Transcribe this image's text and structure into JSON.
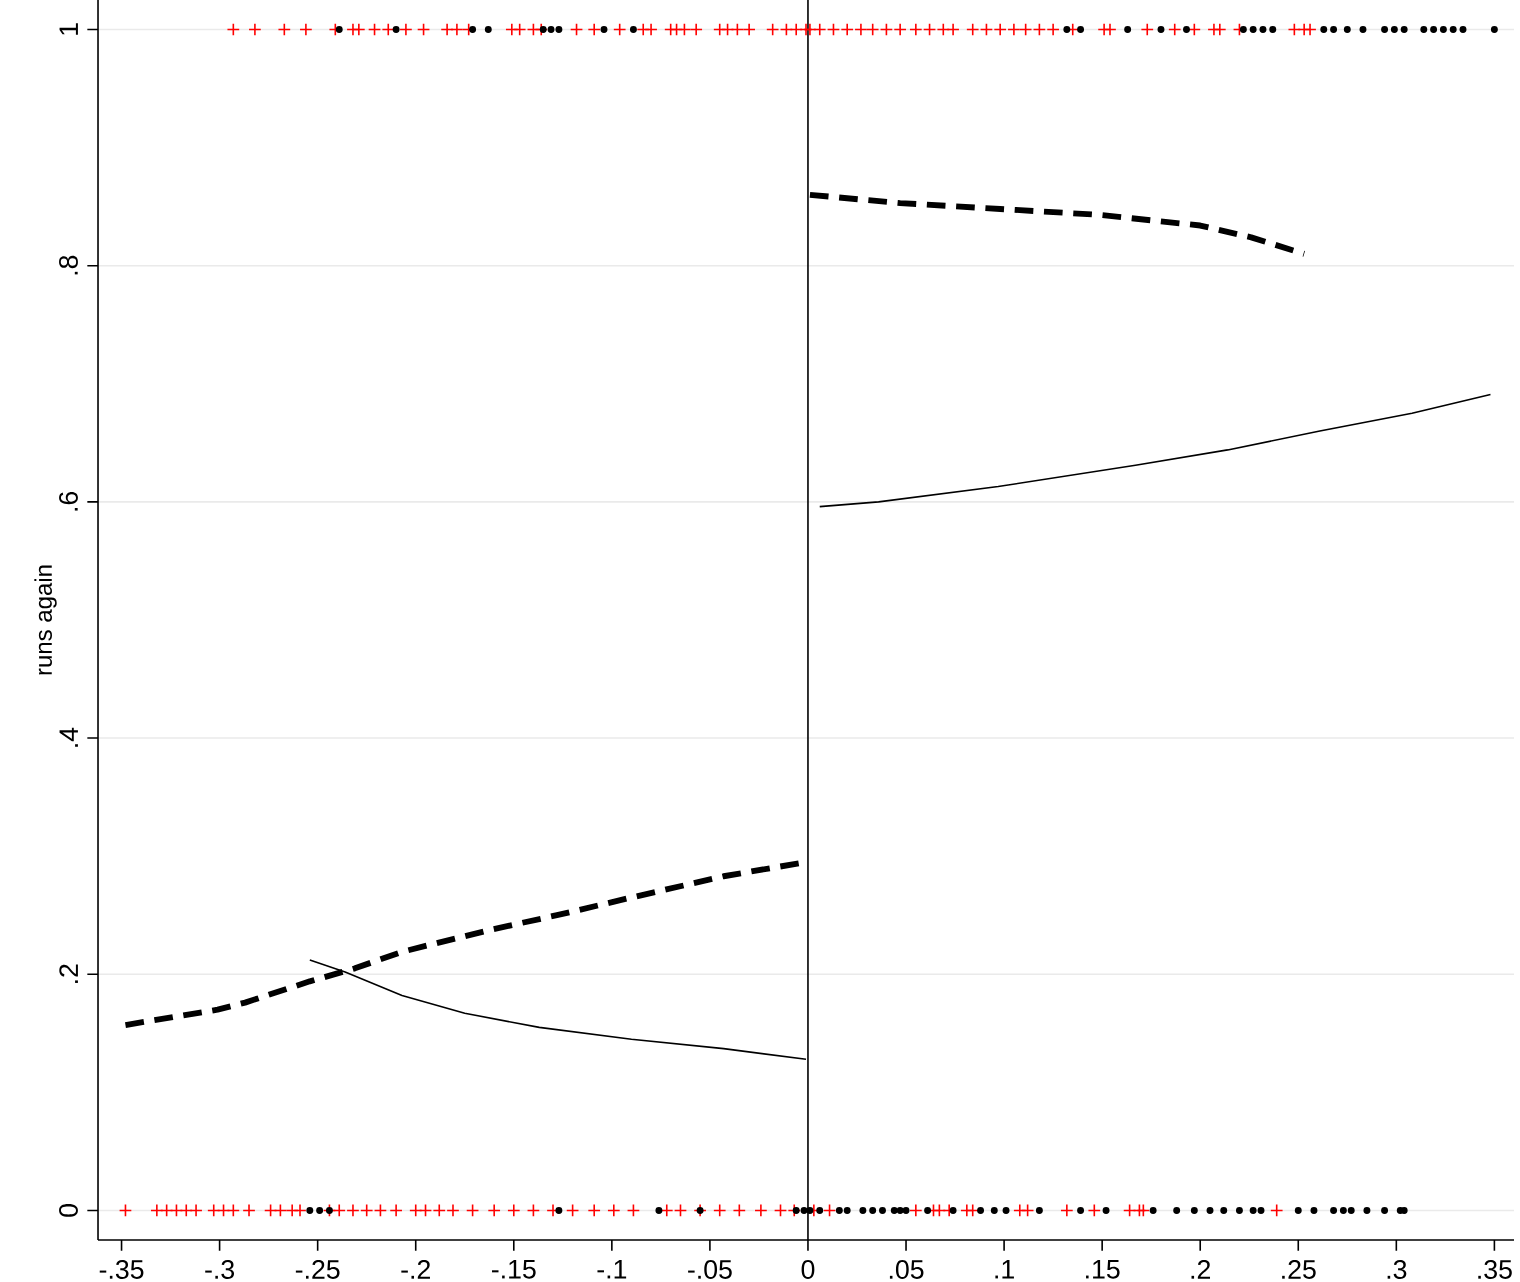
{
  "chart_data": {
    "type": "scatter",
    "ylabel": "runs again",
    "xlim": [
      -0.362,
      0.36
    ],
    "ylim": [
      -0.025,
      1.025
    ],
    "xticks": [
      {
        "value": -0.35,
        "label": "-.35"
      },
      {
        "value": -0.3,
        "label": "-.3"
      },
      {
        "value": -0.25,
        "label": "-.25"
      },
      {
        "value": -0.2,
        "label": "-.2"
      },
      {
        "value": -0.15,
        "label": "-.15"
      },
      {
        "value": -0.1,
        "label": "-.1"
      },
      {
        "value": -0.05,
        "label": "-.05"
      },
      0,
      {
        "value": 0.05,
        "label": ".05"
      },
      {
        "value": 0.1,
        "label": ".1"
      },
      {
        "value": 0.15,
        "label": ".15"
      },
      {
        "value": 0.2,
        "label": ".2"
      },
      {
        "value": 0.25,
        "label": ".25"
      },
      {
        "value": 0.3,
        "label": ".3"
      },
      {
        "value": 0.35,
        "label": ".35"
      }
    ],
    "yticks": [
      0,
      {
        "value": 0.2,
        "label": ".2"
      },
      {
        "value": 0.4,
        "label": ".4"
      },
      {
        "value": 0.6,
        "label": ".6"
      },
      {
        "value": 0.8,
        "label": ".8"
      },
      1
    ],
    "grid": "y",
    "ref_lines": [
      {
        "axis": "x",
        "value": 0,
        "color": "#000000"
      }
    ],
    "series": [
      {
        "marker": "cross",
        "color": "#ff0000",
        "x": [
          -0.293,
          -0.282,
          -0.267,
          -0.256,
          -0.241,
          -0.232,
          -0.229,
          -0.221,
          -0.214,
          -0.205,
          -0.196,
          -0.184,
          -0.179,
          -0.173,
          -0.151,
          -0.147,
          -0.14,
          -0.136,
          -0.118,
          -0.109,
          -0.096,
          -0.084,
          -0.08,
          -0.07,
          -0.067,
          -0.063,
          -0.057,
          -0.045,
          -0.041,
          -0.036,
          -0.03,
          -0.018,
          -0.011,
          -0.006,
          -0.001,
          0.001,
          0.006,
          0.013,
          0.02,
          0.027,
          0.033,
          0.04,
          0.047,
          0.055,
          0.062,
          0.069,
          0.074,
          0.084,
          0.091,
          0.098,
          0.105,
          0.111,
          0.118,
          0.125,
          0.135,
          0.151,
          0.154,
          0.173,
          0.187,
          0.197,
          0.207,
          0.21,
          0.22,
          0.248,
          0.253,
          0.256
        ],
        "values": [
          1,
          1,
          1,
          1,
          1,
          1,
          1,
          1,
          1,
          1,
          1,
          1,
          1,
          1,
          1,
          1,
          1,
          1,
          1,
          1,
          1,
          1,
          1,
          1,
          1,
          1,
          1,
          1,
          1,
          1,
          1,
          1,
          1,
          1,
          1,
          1,
          1,
          1,
          1,
          1,
          1,
          1,
          1,
          1,
          1,
          1,
          1,
          1,
          1,
          1,
          1,
          1,
          1,
          1,
          1,
          1,
          1,
          1,
          1,
          1,
          1,
          1,
          1,
          1,
          1,
          1
        ]
      },
      {
        "marker": "circle",
        "color": "#000000",
        "x": [
          -0.239,
          -0.21,
          -0.171,
          -0.163,
          -0.135,
          -0.131,
          -0.127,
          -0.104,
          -0.089,
          0.132,
          0.139,
          0.163,
          0.18,
          0.193,
          0.222,
          0.227,
          0.232,
          0.237,
          0.263,
          0.268,
          0.275,
          0.283,
          0.294,
          0.299,
          0.304,
          0.314,
          0.319,
          0.324,
          0.329,
          0.334,
          0.35
        ],
        "values": [
          1,
          1,
          1,
          1,
          1,
          1,
          1,
          1,
          1,
          1,
          1,
          1,
          1,
          1,
          1,
          1,
          1,
          1,
          1,
          1,
          1,
          1,
          1,
          1,
          1,
          1,
          1,
          1,
          1,
          1,
          1
        ]
      },
      {
        "marker": "cross",
        "color": "#ff0000",
        "x": [
          -0.348,
          -0.332,
          -0.327,
          -0.322,
          -0.317,
          -0.312,
          -0.303,
          -0.298,
          -0.293,
          -0.285,
          -0.274,
          -0.269,
          -0.263,
          -0.259,
          -0.244,
          -0.239,
          -0.232,
          -0.225,
          -0.218,
          -0.21,
          -0.2,
          -0.195,
          -0.188,
          -0.181,
          -0.171,
          -0.16,
          -0.15,
          -0.14,
          -0.13,
          -0.12,
          -0.109,
          -0.099,
          -0.089,
          -0.072,
          -0.065,
          -0.055,
          -0.045,
          -0.035,
          -0.024,
          -0.014,
          -0.007,
          0.003,
          0.011,
          0.055,
          0.064,
          0.067,
          0.072,
          0.081,
          0.084,
          0.108,
          0.112,
          0.132,
          0.146,
          0.164,
          0.169,
          0.171,
          0.239
        ],
        "values": [
          0,
          0,
          0,
          0,
          0,
          0,
          0,
          0,
          0,
          0,
          0,
          0,
          0,
          0,
          0,
          0,
          0,
          0,
          0,
          0,
          0,
          0,
          0,
          0,
          0,
          0,
          0,
          0,
          0,
          0,
          0,
          0,
          0,
          0,
          0,
          0,
          0,
          0,
          0,
          0,
          0,
          0,
          0,
          0,
          0,
          0,
          0,
          0,
          0,
          0,
          0,
          0,
          0,
          0,
          0,
          0,
          0
        ]
      },
      {
        "marker": "circle",
        "color": "#000000",
        "x": [
          -0.254,
          -0.249,
          -0.244,
          -0.127,
          -0.076,
          -0.055,
          -0.006,
          -0.002,
          0.001,
          0.006,
          0.016,
          0.02,
          0.028,
          0.033,
          0.038,
          0.044,
          0.047,
          0.05,
          0.061,
          0.074,
          0.088,
          0.095,
          0.101,
          0.118,
          0.139,
          0.152,
          0.176,
          0.188,
          0.197,
          0.205,
          0.212,
          0.22,
          0.227,
          0.231,
          0.25,
          0.258,
          0.268,
          0.273,
          0.277,
          0.285,
          0.294,
          0.302,
          0.304
        ],
        "values": [
          0,
          0,
          0,
          0,
          0,
          0,
          0,
          0,
          0,
          0,
          0,
          0,
          0,
          0,
          0,
          0,
          0,
          0,
          0,
          0,
          0,
          0,
          0,
          0,
          0,
          0,
          0,
          0,
          0,
          0,
          0,
          0,
          0,
          0,
          0,
          0,
          0,
          0,
          0,
          0,
          0,
          0,
          0
        ]
      },
      {
        "type": "line",
        "line_style": "dashed",
        "color": "#000000",
        "x": [
          -0.348,
          -0.301,
          -0.287,
          -0.254,
          -0.231,
          -0.207,
          -0.161,
          -0.128,
          -0.09,
          -0.043,
          -0.001
        ],
        "values": [
          0.157,
          0.17,
          0.176,
          0.194,
          0.205,
          0.219,
          0.238,
          0.25,
          0.265,
          0.283,
          0.295
        ]
      },
      {
        "type": "line",
        "line_style": "solid",
        "color": "#000000",
        "x": [
          -0.254,
          -0.236,
          -0.207,
          -0.175,
          -0.137,
          -0.09,
          -0.043,
          -0.001
        ],
        "values": [
          0.212,
          0.202,
          0.182,
          0.167,
          0.155,
          0.145,
          0.137,
          0.128
        ]
      },
      {
        "type": "line",
        "line_style": "solid",
        "color": "#000000",
        "x": [
          0.006,
          0.036,
          0.097,
          0.167,
          0.214,
          0.261,
          0.308,
          0.348
        ],
        "values": [
          0.596,
          0.6,
          0.613,
          0.631,
          0.644,
          0.66,
          0.675,
          0.691
        ]
      },
      {
        "type": "line",
        "line_style": "dashed",
        "color": "#000000",
        "x": [
          0.001,
          0.047,
          0.098,
          0.149,
          0.2,
          0.226,
          0.253
        ],
        "values": [
          0.86,
          0.853,
          0.848,
          0.843,
          0.834,
          0.824,
          0.81
        ]
      }
    ]
  }
}
